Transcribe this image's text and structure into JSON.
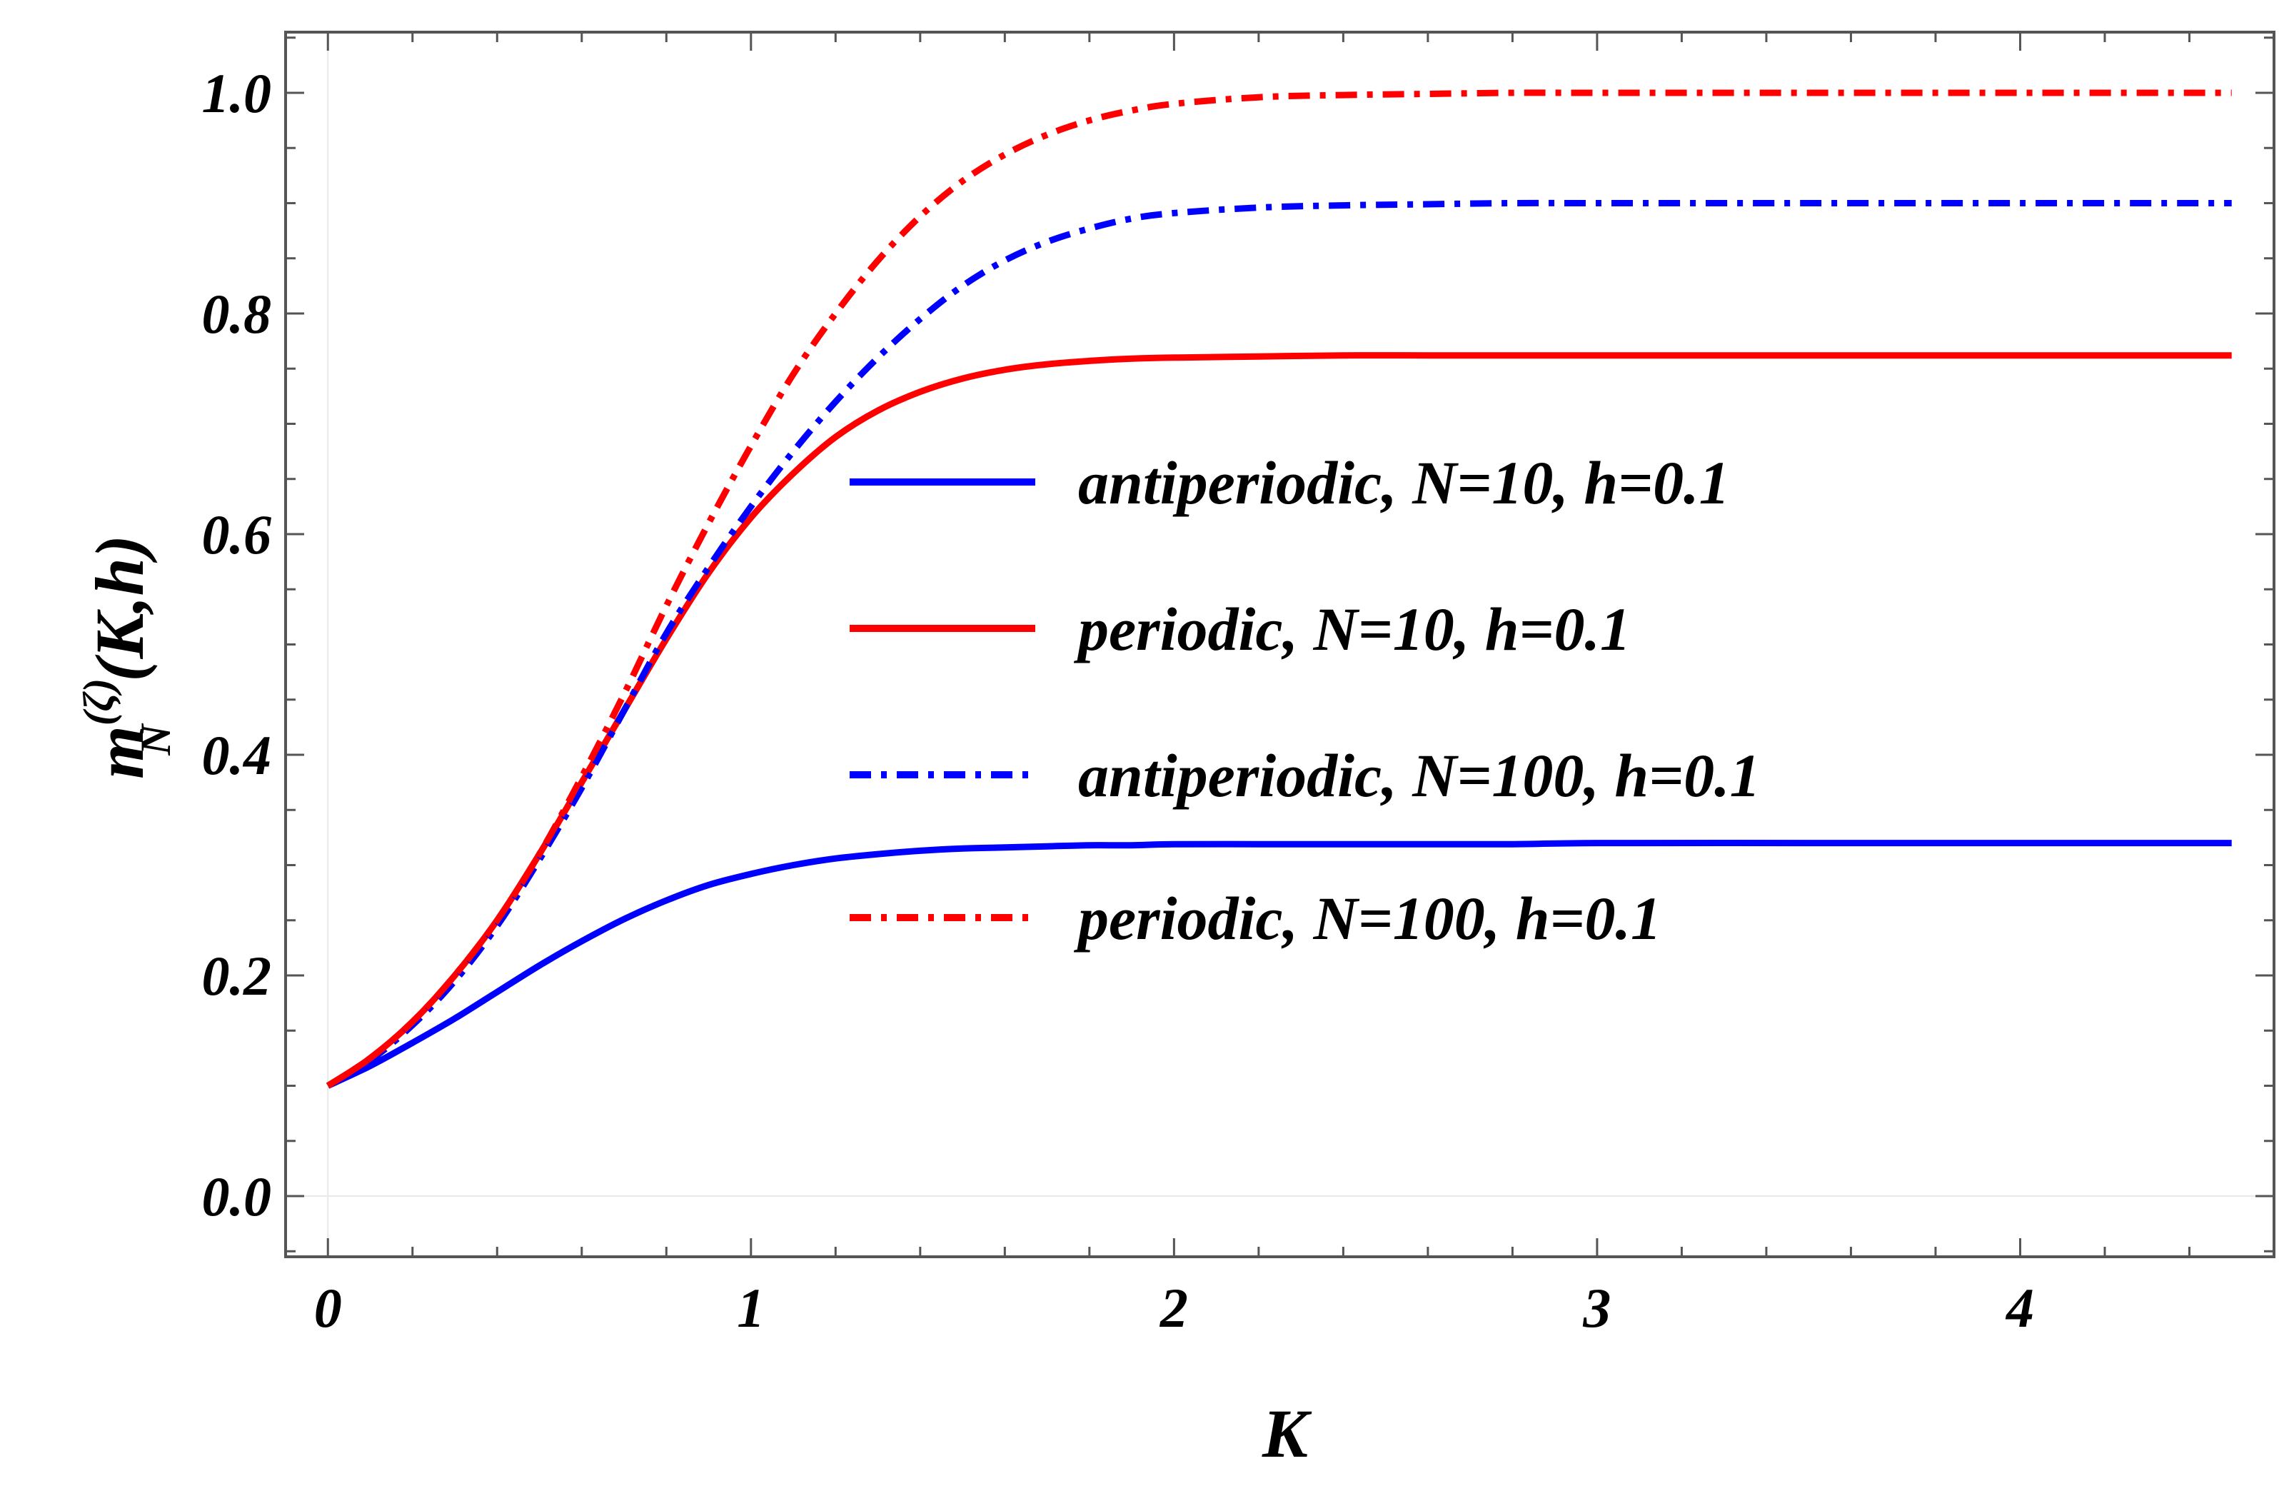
{
  "chart_data": {
    "type": "line",
    "title": "",
    "xlabel": "K",
    "ylabel": {
      "base": "m",
      "superscript": "(ζ)",
      "subscript": "N",
      "args": "(K,h)"
    },
    "xlim": [
      -0.1,
      4.6
    ],
    "ylim": [
      -0.055,
      1.055
    ],
    "xticks": [
      0,
      1,
      2,
      3,
      4
    ],
    "xtick_labels": [
      "0",
      "1",
      "2",
      "3",
      "4"
    ],
    "yticks": [
      0.0,
      0.2,
      0.4,
      0.6,
      0.8,
      1.0
    ],
    "ytick_labels": [
      "0.0",
      "0.2",
      "0.4",
      "0.6",
      "0.8",
      "1.0"
    ],
    "grid": false,
    "legend_position": "center-right",
    "x": [
      0,
      0.1,
      0.2,
      0.3,
      0.4,
      0.5,
      0.6,
      0.7,
      0.8,
      0.9,
      1.0,
      1.1,
      1.2,
      1.3,
      1.4,
      1.5,
      1.6,
      1.7,
      1.8,
      1.9,
      2.0,
      2.2,
      2.4,
      2.6,
      2.8,
      3.0,
      3.5,
      4.0,
      4.5
    ],
    "series": [
      {
        "name": "antiperiodic, N=10, h=0.1",
        "color": "#0000ff",
        "style": "solid",
        "values": [
          0.1,
          0.118,
          0.139,
          0.161,
          0.185,
          0.209,
          0.231,
          0.251,
          0.268,
          0.282,
          0.292,
          0.3,
          0.306,
          0.31,
          0.313,
          0.315,
          0.316,
          0.317,
          0.318,
          0.318,
          0.319,
          0.319,
          0.319,
          0.319,
          0.319,
          0.32,
          0.32,
          0.32,
          0.32
        ]
      },
      {
        "name": "periodic, N=10, h=0.1",
        "color": "#ff0000",
        "style": "solid",
        "values": [
          0.1,
          0.125,
          0.158,
          0.2,
          0.25,
          0.31,
          0.375,
          0.44,
          0.505,
          0.565,
          0.615,
          0.655,
          0.688,
          0.712,
          0.729,
          0.741,
          0.749,
          0.754,
          0.757,
          0.759,
          0.76,
          0.761,
          0.762,
          0.762,
          0.762,
          0.762,
          0.762,
          0.762,
          0.762
        ]
      },
      {
        "name": "antiperiodic, N=100, h=0.1",
        "color": "#0000ff",
        "style": "dash-dot",
        "values": [
          0.1,
          0.123,
          0.155,
          0.195,
          0.245,
          0.305,
          0.37,
          0.44,
          0.51,
          0.57,
          0.625,
          0.675,
          0.72,
          0.76,
          0.795,
          0.825,
          0.848,
          0.865,
          0.877,
          0.886,
          0.891,
          0.896,
          0.898,
          0.899,
          0.9,
          0.9,
          0.9,
          0.9,
          0.9
        ]
      },
      {
        "name": "periodic, N=100, h=0.1",
        "color": "#ff0000",
        "style": "dash-dot",
        "values": [
          0.1,
          0.125,
          0.158,
          0.2,
          0.25,
          0.31,
          0.38,
          0.455,
          0.535,
          0.61,
          0.68,
          0.745,
          0.8,
          0.848,
          0.888,
          0.92,
          0.944,
          0.962,
          0.975,
          0.984,
          0.99,
          0.996,
          0.998,
          0.999,
          1.0,
          1.0,
          1.0,
          1.0,
          1.0
        ]
      }
    ]
  }
}
